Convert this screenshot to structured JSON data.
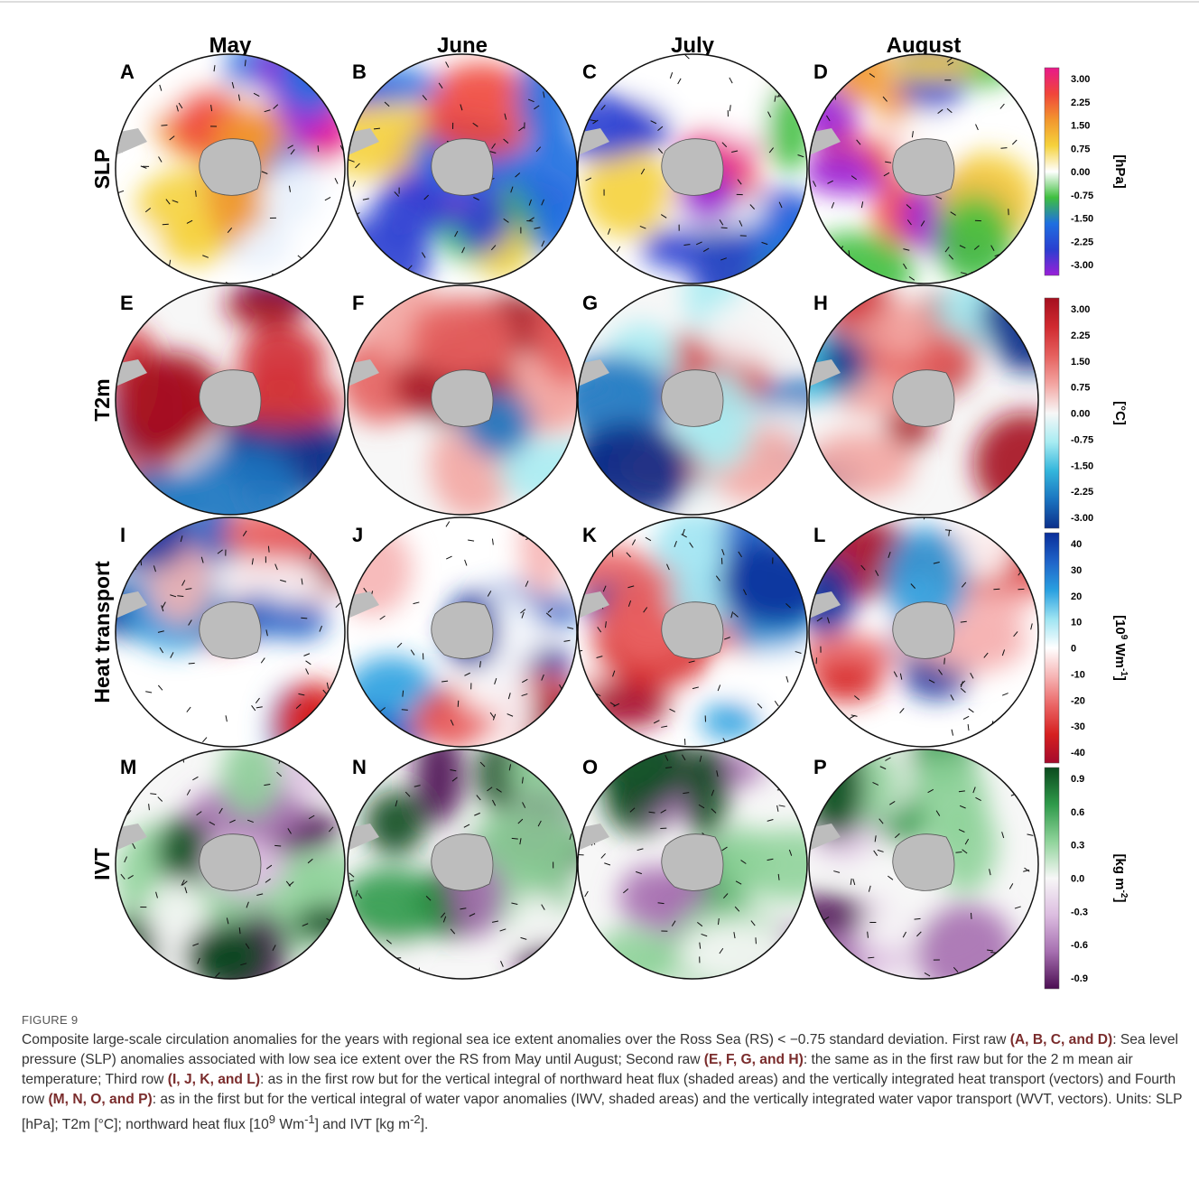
{
  "figure": {
    "columns": [
      "May",
      "June",
      "July",
      "August"
    ],
    "rows": [
      {
        "label": "SLP",
        "panels": [
          "A",
          "B",
          "C",
          "D"
        ],
        "colorbar": {
          "unit": [
            "[hPa]"
          ],
          "ticks": [
            "3.00",
            "2.25",
            "1.50",
            "0.75",
            "0.00",
            "-0.75",
            "-1.50",
            "-2.25",
            "-3.00"
          ],
          "colors": [
            "#e8198a",
            "#f0453a",
            "#f2962e",
            "#f5d23c",
            "#ffffff",
            "#3fbf3f",
            "#1f6fe0",
            "#2a3fd0",
            "#9a1fd8"
          ]
        }
      },
      {
        "label": "T2m",
        "panels": [
          "E",
          "F",
          "G",
          "H"
        ],
        "colorbar": {
          "unit": [
            "[°C]"
          ],
          "ticks": [
            "3.00",
            "2.25",
            "1.50",
            "0.75",
            "0.00",
            "-0.75",
            "-1.50",
            "-2.25",
            "-3.00"
          ],
          "colors": [
            "#a50f1f",
            "#d02a30",
            "#e5605e",
            "#f3a6a2",
            "#f7f7f7",
            "#a8ecf2",
            "#34b6dc",
            "#1a74c0",
            "#0c2f8a"
          ]
        }
      },
      {
        "label": "Heat transport",
        "panels": [
          "I",
          "J",
          "K",
          "L"
        ],
        "colorbar": {
          "unit": [
            "[10",
            "9",
            " Wm",
            "-1",
            "]"
          ],
          "ticks": [
            "40",
            "30",
            "20",
            "10",
            "0",
            "-10",
            "-20",
            "-30",
            "-40"
          ],
          "colors": [
            "#0a2e9a",
            "#1f63c8",
            "#2aa0e0",
            "#9ee4f2",
            "#ffffff",
            "#f6b4b4",
            "#ea6464",
            "#d62020",
            "#a40a2c"
          ]
        }
      },
      {
        "label": "IVT",
        "panels": [
          "M",
          "N",
          "O",
          "P"
        ],
        "colorbar": {
          "unit": [
            "[kg m",
            "-2",
            "]"
          ],
          "ticks": [
            "0.9",
            "0.6",
            "0.3",
            "0.0",
            "-0.3",
            "-0.6",
            "-0.9"
          ],
          "colors": [
            "#0b4a1e",
            "#2f9a4a",
            "#8fd39a",
            "#f7f7f7",
            "#dcbde0",
            "#a66fb0",
            "#4b0e52"
          ]
        }
      }
    ]
  },
  "caption": {
    "label": "FIGURE 9",
    "runs": [
      "Composite large-scale circulation anomalies for the years with regional sea ice extent anomalies over the Ross Sea (RS) < −0.75 standard deviation. First raw ",
      "(A, B, C, and D)",
      ": Sea level pressure (SLP) anomalies associated with low sea ice extent over the RS from May until August; Second raw ",
      "(E, F, G, and H)",
      ": the same as in the first raw but for the 2 m mean air temperature; Third row ",
      "(I, J, K, and L)",
      ": as in the first row but for the vertical integral of northward heat flux (shaded areas) and the vertically integrated heat transport (vectors) and Fourth row ",
      "(M, N, O, and P)",
      ": as in the first but for the vertical integral of water vapor anomalies (IWV, shaded areas) and the vertically integrated water vapor transport (WVT, vectors). Units: SLP [hPa]; T2m [°C]; northward heat flux [10",
      "9",
      " Wm",
      "-1",
      "] and IVT [kg m",
      "-2",
      "]."
    ]
  }
}
